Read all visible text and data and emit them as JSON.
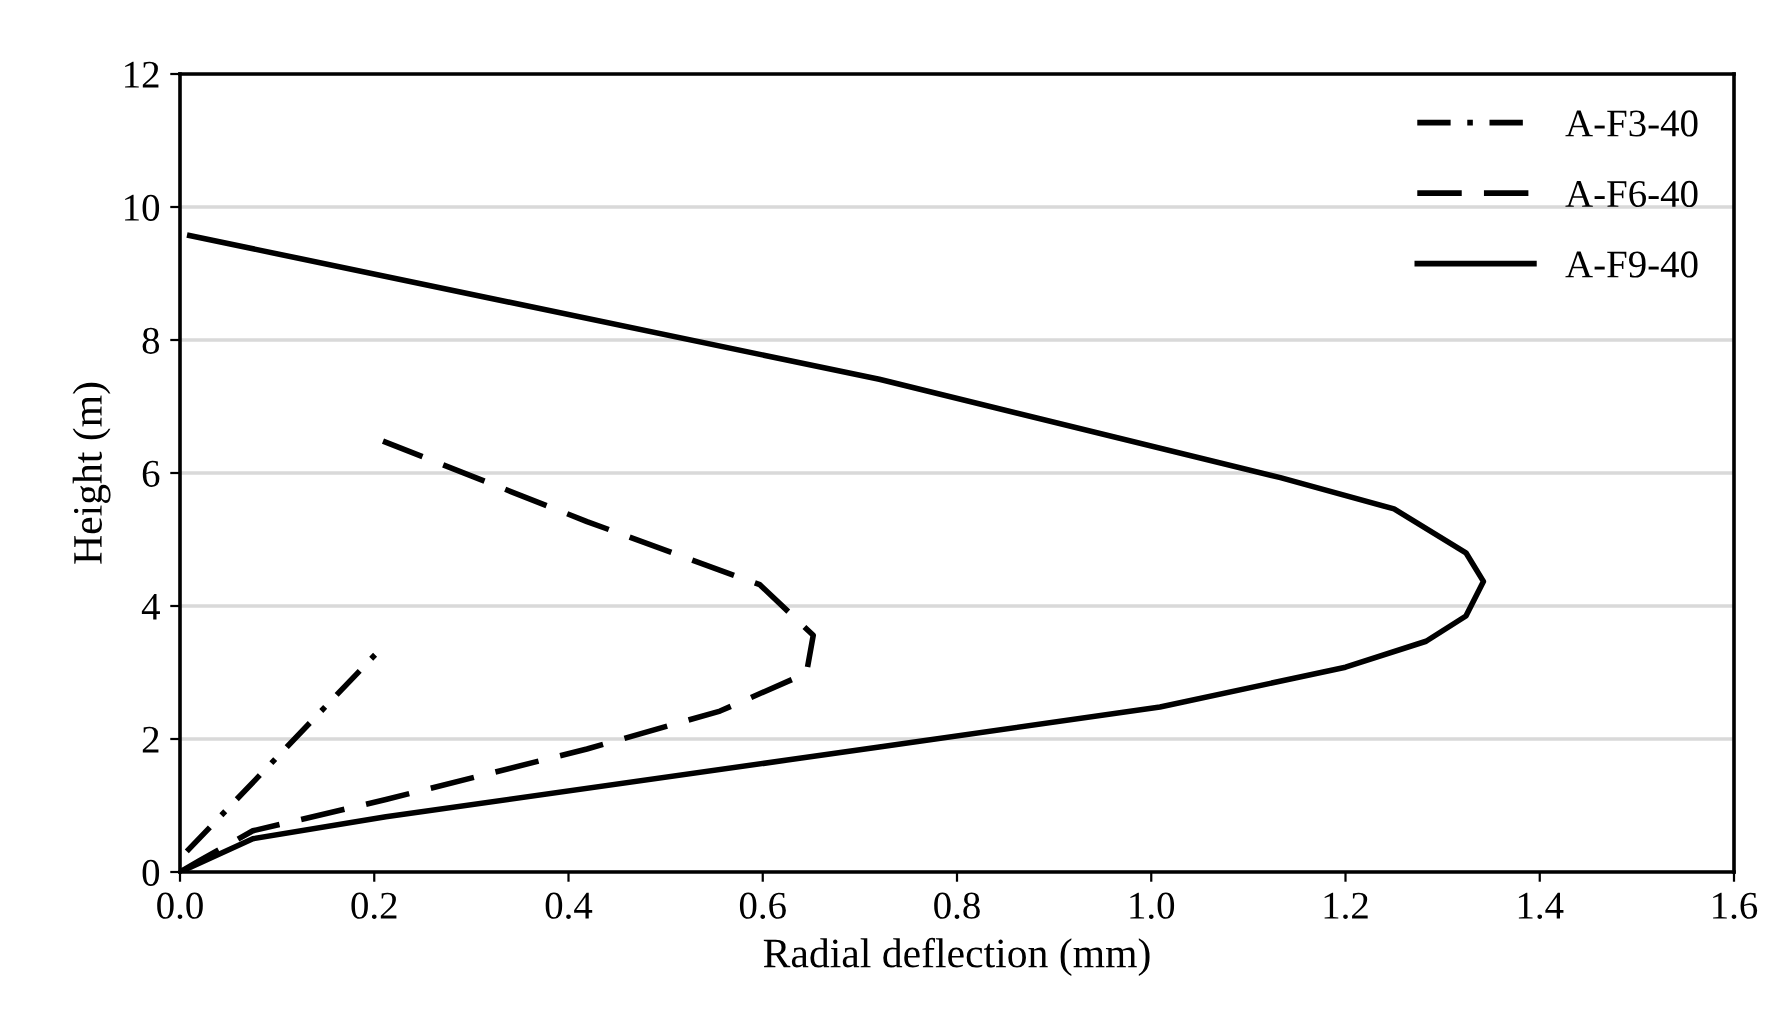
{
  "chart_data": {
    "type": "line",
    "xlabel": "Radial deflection (mm)",
    "ylabel": "Height (m)",
    "xlim": [
      0,
      1.6
    ],
    "xticks": [
      {
        "value": 0,
        "label": "0.0"
      },
      {
        "value": 0.2,
        "label": "0.2"
      },
      {
        "value": 0.4,
        "label": "0.4"
      },
      {
        "value": 0.6,
        "label": "0.6"
      },
      {
        "value": 0.8,
        "label": "0.8"
      },
      {
        "value": 1,
        "label": "1.0"
      },
      {
        "value": 1.2,
        "label": "1.2"
      },
      {
        "value": 1.4,
        "label": "1.4"
      },
      {
        "value": 1.6,
        "label": "1.6"
      }
    ],
    "ylim": [
      0,
      12
    ],
    "yticks": [
      0,
      2,
      4,
      6,
      8,
      10,
      12
    ],
    "grid": "y",
    "legend": "top right",
    "series": [
      {
        "name": "A-F3-40",
        "color": "#000000",
        "line_style": "dashdot",
        "x": [
          0.007,
          0.11,
          0.203
        ],
        "values": [
          0.31,
          1.88,
          3.3
        ]
      },
      {
        "name": "A-F6-40",
        "color": "#000000",
        "line_style": "dashed",
        "x": [
          0,
          0.02,
          0.075,
          0.212,
          0.419,
          0.556,
          0.645,
          0.652,
          0.597,
          0.419,
          0.209
        ],
        "values": [
          0,
          0.17,
          0.62,
          1.09,
          1.85,
          2.42,
          2.99,
          3.56,
          4.32,
          5.27,
          6.48
        ]
      },
      {
        "name": "A-F9-40",
        "color": "#000000",
        "line_style": "solid",
        "x": [
          0,
          0.075,
          0.212,
          0.72,
          1.009,
          1.2,
          1.283,
          1.324,
          1.342,
          1.324,
          1.25,
          1.133,
          0.72,
          0.01
        ],
        "values": [
          0,
          0.5,
          0.83,
          1.88,
          2.48,
          3.08,
          3.47,
          3.85,
          4.37,
          4.8,
          5.46,
          5.93,
          7.41,
          9.57
        ]
      }
    ]
  }
}
